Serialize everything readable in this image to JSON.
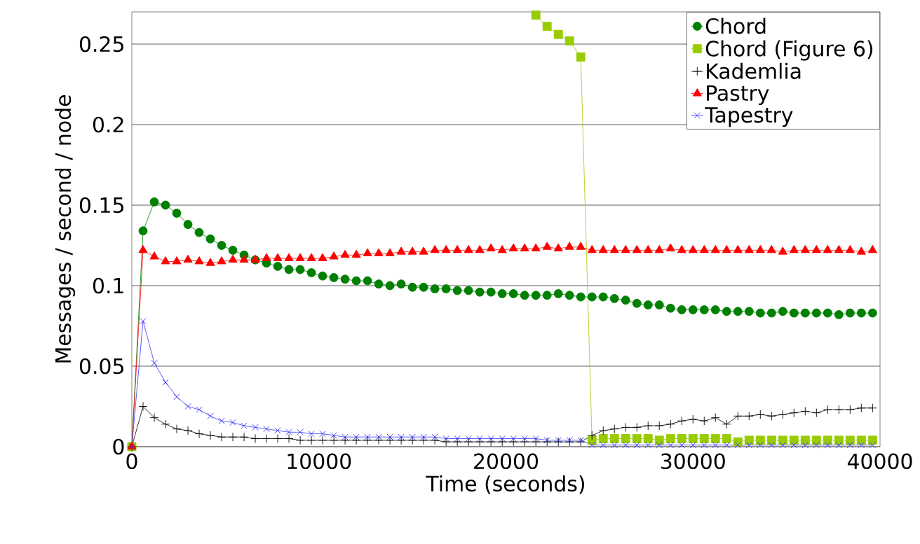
{
  "chart_data": {
    "type": "line",
    "xlabel": "Time (seconds)",
    "ylabel": "Messages / second / node",
    "x": [
      0,
      600,
      1200,
      1800,
      2400,
      3000,
      3600,
      4200,
      4800,
      5400,
      6000,
      6600,
      7200,
      7800,
      8400,
      9000,
      9600,
      10200,
      10800,
      11400,
      12000,
      12600,
      13200,
      13800,
      14400,
      15000,
      15600,
      16200,
      16800,
      17400,
      18000,
      18600,
      19200,
      19800,
      20400,
      21000,
      21600,
      22200,
      22800,
      23400,
      24000,
      24600,
      25200,
      25800,
      26400,
      27000,
      27600,
      28200,
      28800,
      29400,
      30000,
      30600,
      31200,
      31800,
      32400,
      33000,
      33600,
      34200,
      34800,
      35400,
      36000,
      36600,
      37200,
      37800,
      38400,
      39000,
      39600
    ],
    "xlim": [
      0,
      40000
    ],
    "ylim": [
      0,
      0.27
    ],
    "xticks": [
      0,
      10000,
      20000,
      30000,
      40000
    ],
    "yticks": [
      0,
      0.05,
      0.1,
      0.15,
      0.2,
      0.25
    ],
    "grid": "y",
    "legend": "top right",
    "series": [
      {
        "name": "Chord",
        "color": "#008000",
        "marker": "circle",
        "values": [
          0,
          0.134,
          0.152,
          0.15,
          0.145,
          0.138,
          0.133,
          0.129,
          0.125,
          0.122,
          0.119,
          0.116,
          0.114,
          0.112,
          0.11,
          0.11,
          0.108,
          0.106,
          0.105,
          0.104,
          0.103,
          0.103,
          0.101,
          0.1,
          0.101,
          0.099,
          0.099,
          0.098,
          0.098,
          0.097,
          0.097,
          0.096,
          0.096,
          0.095,
          0.095,
          0.094,
          0.094,
          0.094,
          0.095,
          0.094,
          0.093,
          0.093,
          0.093,
          0.092,
          0.091,
          0.089,
          0.088,
          0.088,
          0.086,
          0.085,
          0.085,
          0.085,
          0.085,
          0.084,
          0.084,
          0.084,
          0.083,
          0.083,
          0.084,
          0.083,
          0.083,
          0.083,
          0.083,
          0.082,
          0.083,
          0.083,
          0.083
        ]
      },
      {
        "name": "Chord (Figure 6)",
        "color": "#99cc00",
        "marker": "square",
        "values": [
          0,
          null,
          null,
          null,
          null,
          null,
          null,
          null,
          null,
          null,
          null,
          null,
          null,
          null,
          null,
          null,
          null,
          null,
          null,
          null,
          null,
          null,
          null,
          null,
          null,
          null,
          null,
          null,
          null,
          null,
          null,
          null,
          null,
          null,
          null,
          null,
          0.268,
          0.261,
          0.256,
          0.252,
          0.242,
          0.004,
          0.005,
          0.005,
          0.005,
          0.005,
          0.005,
          0.004,
          0.005,
          0.005,
          0.005,
          0.005,
          0.005,
          0.005,
          0.003,
          0.004,
          0.004,
          0.004,
          0.004,
          0.004,
          0.004,
          0.004,
          0.004,
          0.004,
          0.004,
          0.004,
          0.004
        ]
      },
      {
        "name": "Kademlia",
        "color": "#000000",
        "marker": "plus",
        "values": [
          0,
          0.025,
          0.018,
          0.014,
          0.011,
          0.01,
          0.008,
          0.007,
          0.006,
          0.006,
          0.006,
          0.005,
          0.005,
          0.005,
          0.005,
          0.004,
          0.004,
          0.004,
          0.004,
          0.004,
          0.004,
          0.004,
          0.004,
          0.004,
          0.004,
          0.004,
          0.004,
          0.004,
          0.003,
          0.003,
          0.003,
          0.003,
          0.003,
          0.003,
          0.003,
          0.003,
          0.003,
          0.003,
          0.003,
          0.003,
          0.003,
          0.007,
          0.01,
          0.011,
          0.012,
          0.012,
          0.013,
          0.013,
          0.014,
          0.016,
          0.017,
          0.016,
          0.018,
          0.014,
          0.019,
          0.019,
          0.02,
          0.019,
          0.02,
          0.021,
          0.022,
          0.021,
          0.023,
          0.023,
          0.023,
          0.024,
          0.024
        ]
      },
      {
        "name": "Pastry",
        "color": "#ff0000",
        "marker": "triangle",
        "values": [
          0,
          0.122,
          0.118,
          0.115,
          0.115,
          0.116,
          0.115,
          0.114,
          0.115,
          0.116,
          0.116,
          0.116,
          0.117,
          0.117,
          0.117,
          0.117,
          0.117,
          0.117,
          0.118,
          0.119,
          0.119,
          0.12,
          0.12,
          0.12,
          0.121,
          0.121,
          0.121,
          0.122,
          0.122,
          0.122,
          0.122,
          0.122,
          0.123,
          0.122,
          0.123,
          0.123,
          0.123,
          0.124,
          0.123,
          0.124,
          0.124,
          0.122,
          0.122,
          0.122,
          0.122,
          0.122,
          0.122,
          0.122,
          0.123,
          0.122,
          0.122,
          0.122,
          0.122,
          0.122,
          0.122,
          0.122,
          0.122,
          0.122,
          0.121,
          0.122,
          0.122,
          0.122,
          0.122,
          0.122,
          0.122,
          0.121,
          0.122
        ]
      },
      {
        "name": "Tapestry",
        "color": "#3333ff",
        "marker": "cross",
        "values": [
          0,
          0.078,
          0.052,
          0.04,
          0.031,
          0.025,
          0.023,
          0.019,
          0.016,
          0.015,
          0.013,
          0.012,
          0.011,
          0.01,
          0.009,
          0.009,
          0.008,
          0.008,
          0.007,
          0.006,
          0.006,
          0.006,
          0.006,
          0.006,
          0.006,
          0.006,
          0.006,
          0.006,
          0.005,
          0.005,
          0.005,
          0.005,
          0.005,
          0.005,
          0.005,
          0.005,
          0.005,
          0.004,
          0.004,
          0.004,
          0.004,
          0.001,
          0.001,
          0.001,
          0.001,
          0.001,
          0.001,
          0.001,
          0.001,
          0.001,
          0.001,
          0.001,
          0.001,
          0.001,
          0.001,
          0.001,
          0.001,
          0.001,
          0.001,
          0.001,
          0.001,
          0.001,
          0.001,
          0.001,
          0.001,
          0.001,
          0.001
        ]
      }
    ]
  }
}
